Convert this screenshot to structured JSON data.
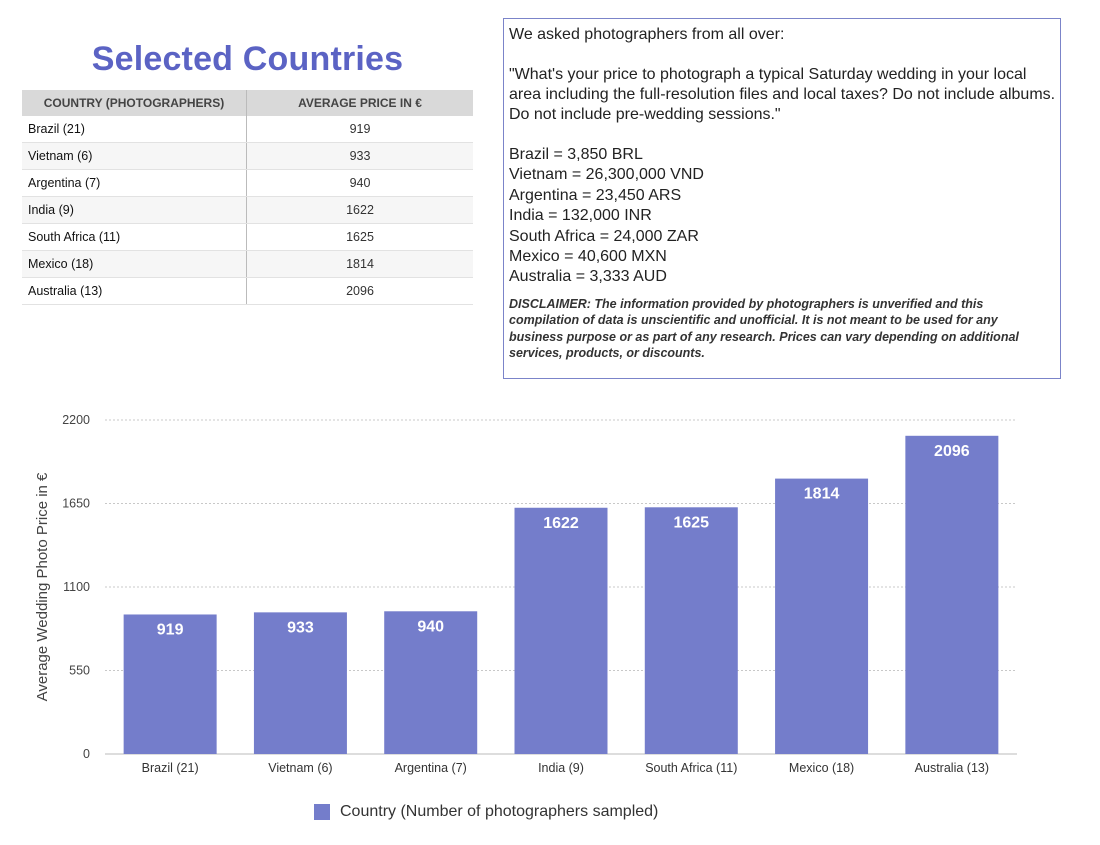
{
  "title": "Selected Countries",
  "table": {
    "headers": [
      "COUNTRY (PHOTOGRAPHERS)",
      "AVERAGE PRICE IN €"
    ],
    "rows": [
      {
        "country": "Brazil (21)",
        "price": "919"
      },
      {
        "country": "Vietnam (6)",
        "price": "933"
      },
      {
        "country": "Argentina (7)",
        "price": "940"
      },
      {
        "country": "India (9)",
        "price": "1622"
      },
      {
        "country": "South Africa (11)",
        "price": "1625"
      },
      {
        "country": "Mexico (18)",
        "price": "1814"
      },
      {
        "country": "Australia (13)",
        "price": "2096"
      }
    ]
  },
  "info": {
    "intro": "We asked photographers from all over:",
    "question": "\"What's your price to photograph a typical Saturday wedding in your local area including the full-resolution files and local taxes? Do not include albums. Do not include pre-wedding sessions.\"",
    "rates": [
      "Brazil = 3,850 BRL",
      "Vietnam = 26,300,000 VND",
      "Argentina = 23,450 ARS",
      "India = 132,000 INR",
      "South Africa = 24,000 ZAR",
      "Mexico = 40,600 MXN",
      "Australia = 3,333 AUD"
    ],
    "disclaimer": "DISCLAIMER: The information provided by photographers is unverified and this compilation of data is unscientific and unofficial. It is not meant to be used for any business purpose or as part of any research. Prices can vary depending on additional services, products, or discounts."
  },
  "chart_data": {
    "type": "bar",
    "categories": [
      "Brazil (21)",
      "Vietnam (6)",
      "Argentina (7)",
      "India (9)",
      "South Africa (11)",
      "Mexico (18)",
      "Australia (13)"
    ],
    "series": [
      {
        "name": "Country (Number of photographers sampled)",
        "values": [
          919,
          933,
          940,
          1622,
          1625,
          1814,
          2096
        ],
        "color": "#747dcb"
      }
    ],
    "ylabel": "Average Wedding Photo Price in €",
    "xlabel": "",
    "ylim": [
      0,
      2200
    ],
    "yticks": [
      0,
      550,
      1100,
      1650,
      2200
    ],
    "grid": true,
    "legend": "bottom"
  },
  "colors": {
    "accent": "#5b63c4",
    "bar": "#747dcb",
    "grid": "#c8c8c8"
  }
}
